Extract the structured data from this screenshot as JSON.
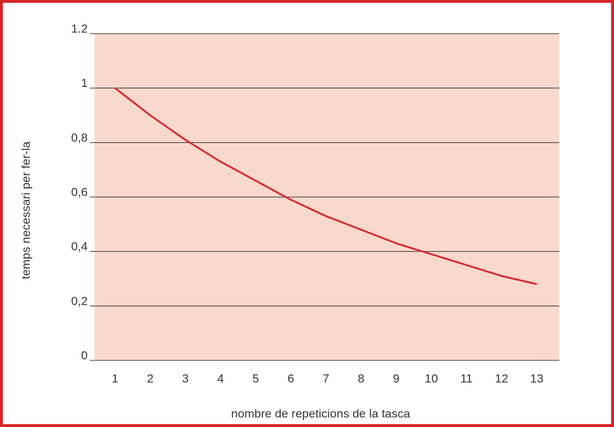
{
  "chart_data": {
    "type": "line",
    "x_label": "nombre de repeticions de la tasca",
    "y_label": "temps necessari per fer-la",
    "x": [
      1,
      2,
      3,
      4,
      5,
      6,
      7,
      8,
      9,
      10,
      11,
      12,
      13
    ],
    "series": [
      {
        "color": "#d9232a",
        "values": [
          1,
          0.9,
          0.81,
          0.73,
          0.66,
          0.59,
          0.53,
          0.48,
          0.43,
          0.39,
          0.35,
          0.31,
          0.28
        ]
      }
    ],
    "xlim": [
      0.42,
      13.64
    ],
    "xticks": [
      1,
      2,
      3,
      4,
      5,
      6,
      7,
      8,
      9,
      10,
      11,
      12,
      13
    ],
    "ylim": [
      0,
      1.2
    ],
    "yticks": [
      0,
      {
        "value": 0.2,
        "label": "0,2"
      },
      {
        "value": 0.4,
        "label": "0,4"
      },
      {
        "value": 0.6,
        "label": "0,6"
      },
      {
        "value": 0.8,
        "label": "0,8"
      },
      1,
      1.2
    ],
    "grid": true,
    "plot_background": "#f9d9cc"
  }
}
